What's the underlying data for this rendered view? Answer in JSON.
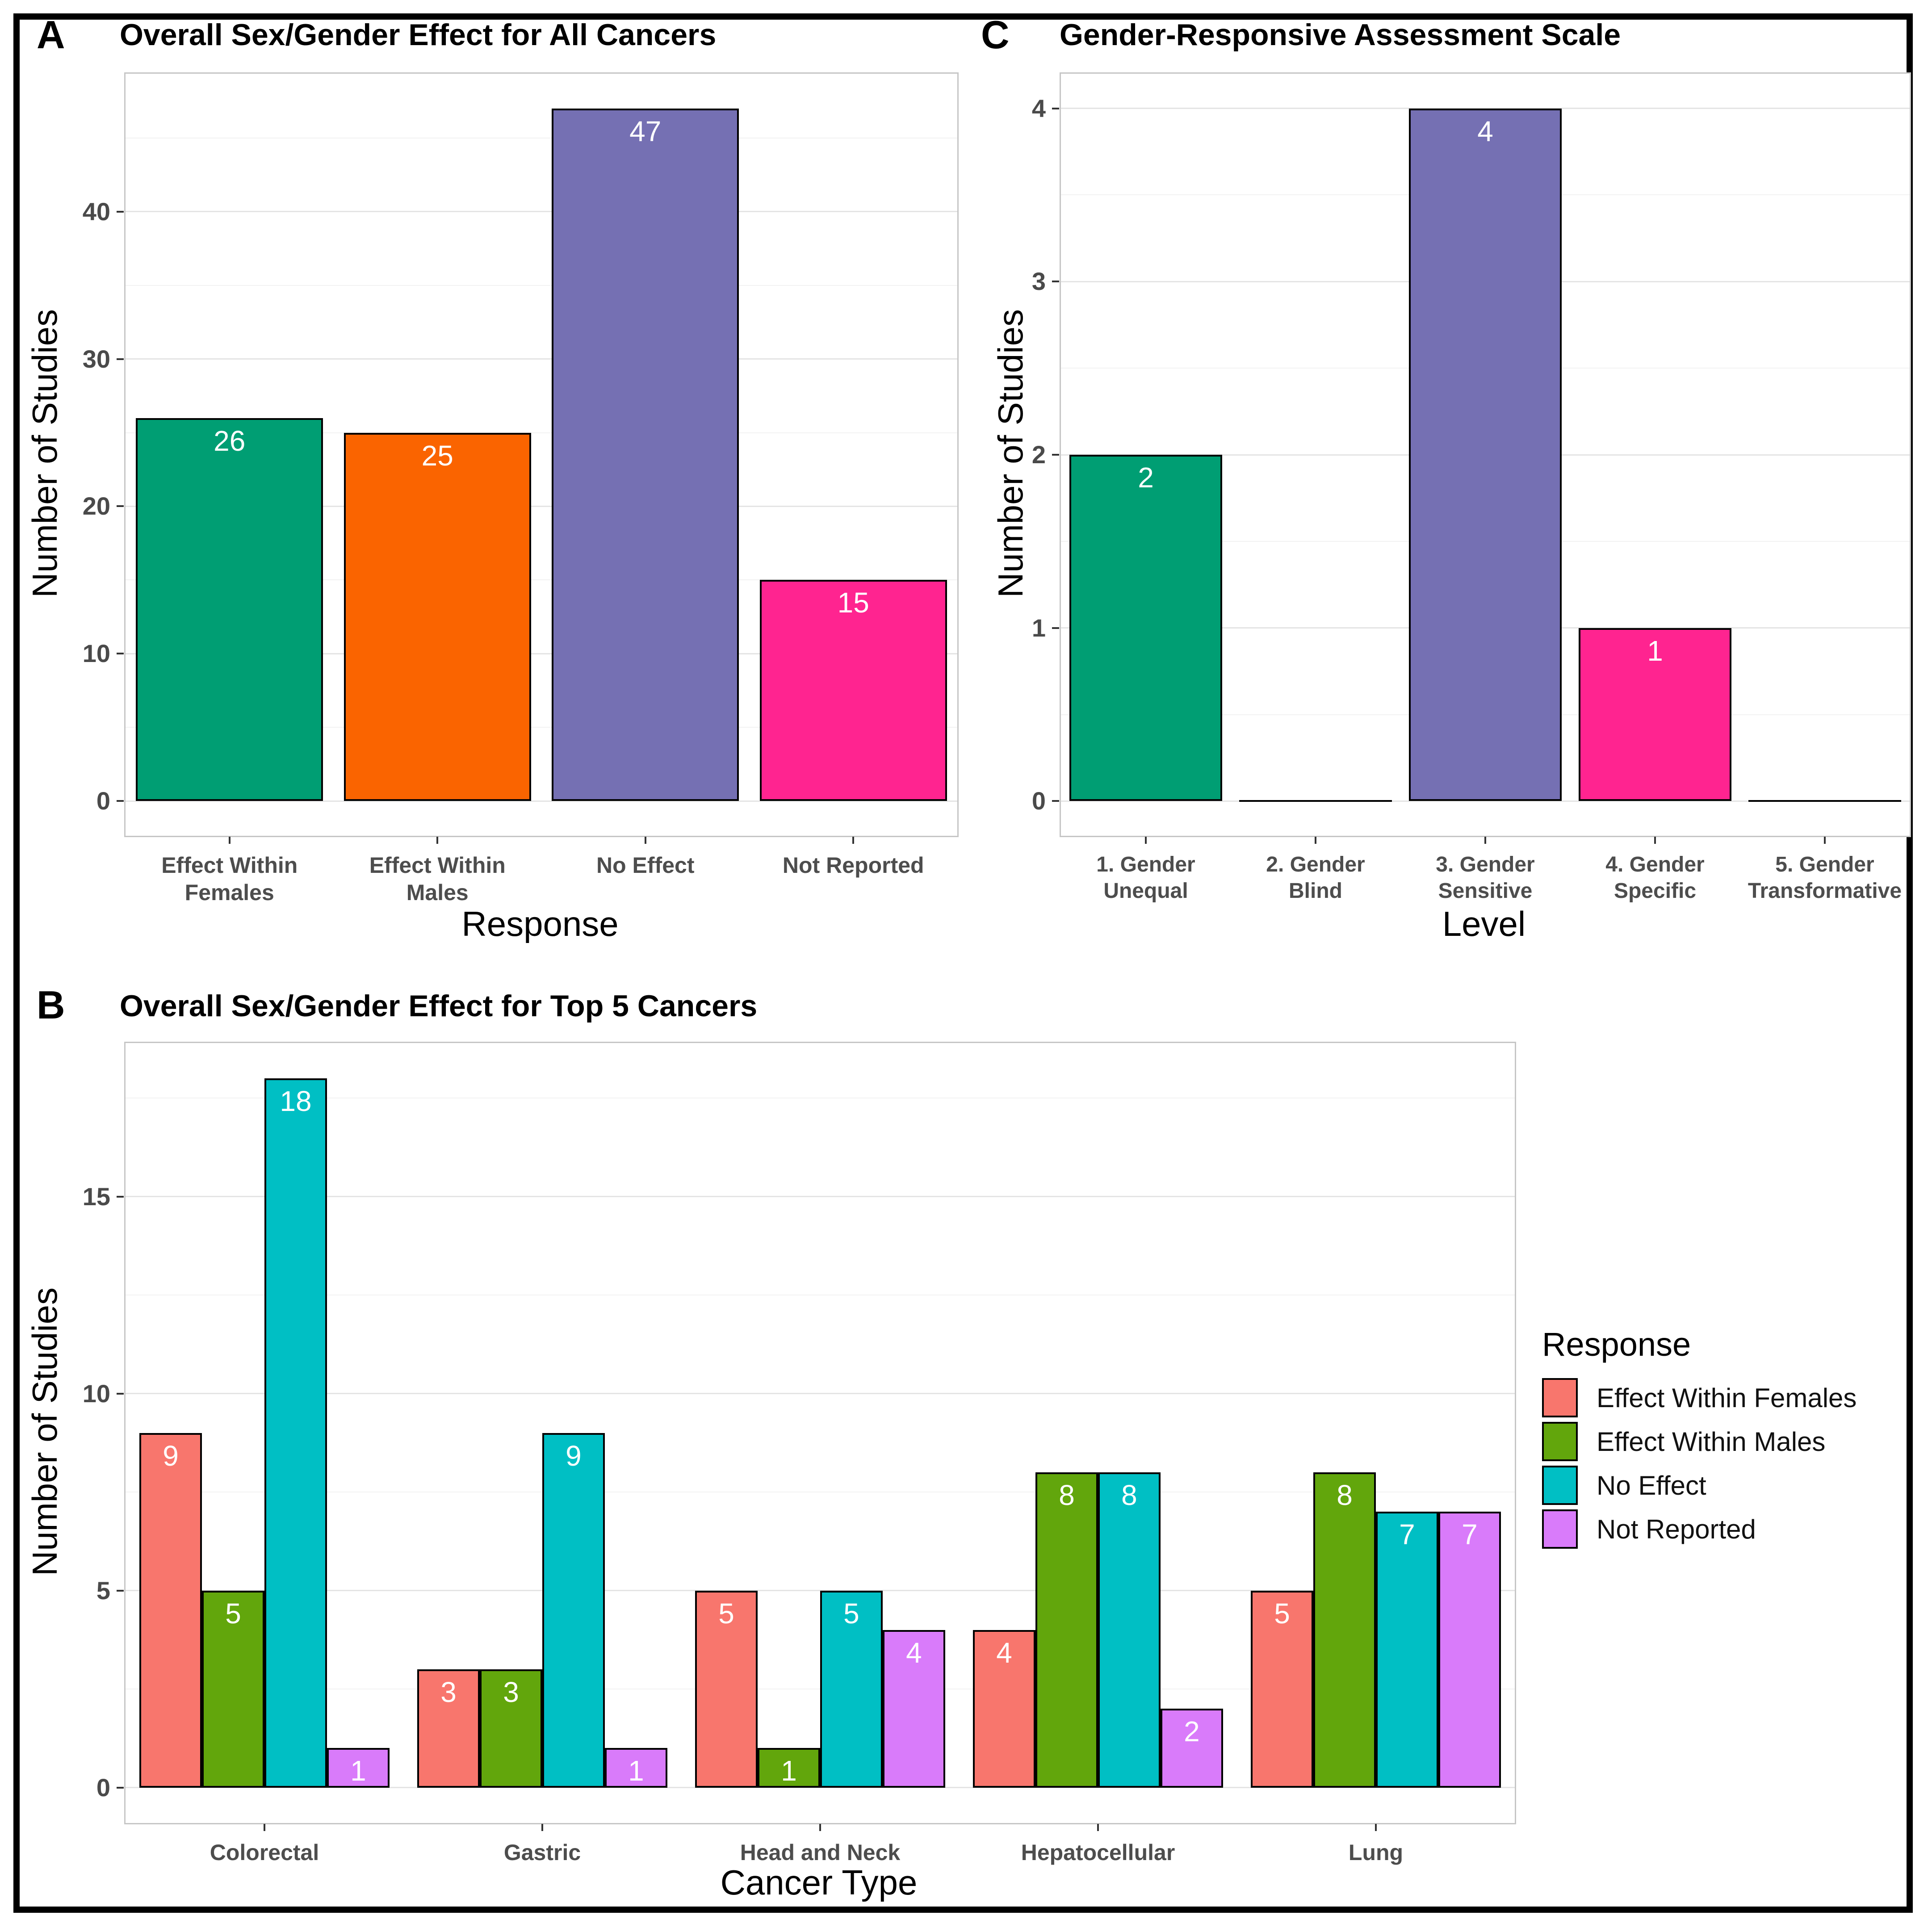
{
  "figure": {
    "background": "#FFFFFF",
    "frame_color": "#000000",
    "gridline_color": "#E4E4E4",
    "panel_border_color": "#C6C6C6"
  },
  "chart_data": [
    {
      "panel_label": "A",
      "type": "bar",
      "title": "Overall Sex/Gender Effect for All Cancers",
      "xlabel": "Response",
      "ylabel": "Number of Studies",
      "categories": [
        "Effect Within\nFemales",
        "Effect Within\nMales",
        "No Effect",
        "Not Reported"
      ],
      "values": [
        26,
        25,
        47,
        15
      ],
      "bar_colors": [
        "#009E73",
        "#FA6400",
        "#7570B3",
        "#FF2490"
      ],
      "value_label_color": "#FFFFFF",
      "yticks": [
        0,
        10,
        20,
        30,
        40
      ],
      "ylim": [
        0,
        47
      ],
      "grid": "horizontal-light",
      "legend_position": "none"
    },
    {
      "panel_label": "B",
      "type": "grouped-bar",
      "title": "Overall Sex/Gender Effect for Top 5 Cancers",
      "xlabel": "Cancer Type",
      "ylabel": "Number of Studies",
      "categories": [
        "Colorectal",
        "Gastric",
        "Head and Neck",
        "Hepatocellular",
        "Lung"
      ],
      "series": [
        {
          "name": "Effect Within Females",
          "color": "#F8766D",
          "values": [
            9,
            3,
            5,
            4,
            5
          ]
        },
        {
          "name": "Effect Within Males",
          "color": "#62A60C",
          "values": [
            5,
            3,
            1,
            8,
            8
          ]
        },
        {
          "name": "No Effect",
          "color": "#00BFC4",
          "values": [
            18,
            9,
            5,
            8,
            7
          ]
        },
        {
          "name": "Not Reported",
          "color": "#D97BFA",
          "values": [
            1,
            1,
            4,
            2,
            7
          ]
        }
      ],
      "yticks": [
        0,
        5,
        10,
        15
      ],
      "ylim": [
        0,
        18
      ],
      "legend": {
        "title": "Response",
        "position": "right",
        "entries": [
          "Effect Within Females",
          "Effect Within Males",
          "No Effect",
          "Not Reported"
        ]
      },
      "value_label_color": "#FFFFFF",
      "grid": "horizontal-light"
    },
    {
      "panel_label": "C",
      "type": "bar",
      "title": "Gender-Responsive Assessment Scale",
      "xlabel": "Level",
      "ylabel": "Number of Studies",
      "categories": [
        "1. Gender\nUnequal",
        "2. Gender\nBlind",
        "3. Gender\nSensitive",
        "4. Gender\nSpecific",
        "5. Gender\nTransformative"
      ],
      "values": [
        2,
        0,
        4,
        1,
        0
      ],
      "bar_colors": [
        "#009E73",
        "#FA6400",
        "#7570B3",
        "#FF2490",
        "#66A61E"
      ],
      "value_label_color": "#FFFFFF",
      "yticks": [
        0,
        1,
        2,
        3,
        4
      ],
      "ylim": [
        0,
        4
      ],
      "grid": "horizontal-light",
      "legend_position": "none"
    }
  ]
}
